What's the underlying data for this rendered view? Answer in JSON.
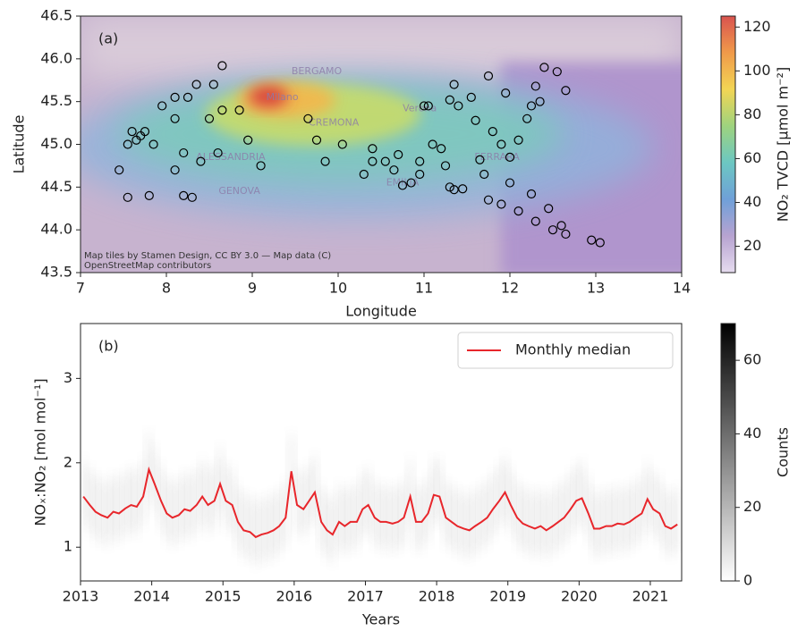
{
  "chart_data": [
    {
      "type": "scatter",
      "panel_label": "(a)",
      "x_label": "Longitude",
      "y_label": "Latitude",
      "xlim": [
        7,
        14
      ],
      "xticks": [
        7,
        8,
        9,
        10,
        11,
        12,
        13,
        14
      ],
      "ylim": [
        43.5,
        46.5
      ],
      "yticks": [
        43.5,
        {
          "value": 44,
          "label": "44.0"
        },
        44.5,
        {
          "value": 45,
          "label": "45.0"
        },
        45.5,
        {
          "value": 46,
          "label": "46.0"
        },
        46.5
      ],
      "x": [
        7.45,
        7.55,
        7.55,
        7.6,
        7.65,
        7.7,
        7.75,
        7.85,
        7.8,
        7.95,
        8.1,
        8.1,
        8.1,
        8.25,
        8.35,
        8.2,
        8.2,
        8.3,
        8.4,
        8.5,
        8.55,
        8.65,
        8.6,
        8.65,
        8.85,
        8.95,
        9.1,
        9.65,
        9.75,
        9.85,
        10.05,
        10.3,
        10.4,
        10.4,
        10.55,
        10.65,
        10.7,
        10.75,
        10.85,
        10.95,
        10.95,
        11.0,
        11.05,
        11.1,
        11.2,
        11.25,
        11.3,
        11.35,
        11.45,
        11.3,
        11.35,
        11.4,
        11.55,
        11.6,
        11.65,
        11.7,
        11.75,
        11.8,
        11.75,
        11.9,
        11.9,
        11.95,
        12.0,
        12.0,
        12.1,
        12.1,
        12.2,
        12.25,
        12.25,
        12.3,
        12.35,
        12.4,
        12.3,
        12.45,
        12.5,
        12.55,
        12.6,
        12.65,
        12.65,
        12.95,
        13.05
      ],
      "y": [
        44.7,
        44.38,
        45.0,
        45.15,
        45.05,
        45.1,
        45.15,
        45.0,
        44.4,
        45.45,
        44.7,
        45.3,
        45.55,
        45.55,
        45.7,
        44.9,
        44.4,
        44.38,
        44.8,
        45.3,
        45.7,
        45.92,
        44.9,
        45.4,
        45.4,
        45.05,
        44.75,
        45.3,
        45.05,
        44.8,
        45.0,
        44.65,
        44.95,
        44.8,
        44.8,
        44.7,
        44.88,
        44.52,
        44.55,
        44.65,
        44.8,
        45.45,
        45.45,
        45.0,
        44.95,
        44.75,
        44.5,
        44.47,
        44.48,
        45.52,
        45.7,
        45.45,
        45.55,
        45.28,
        44.82,
        44.65,
        44.35,
        45.15,
        45.8,
        44.3,
        45.0,
        45.6,
        44.85,
        44.55,
        45.05,
        44.22,
        45.3,
        44.42,
        45.45,
        45.68,
        45.5,
        45.9,
        44.1,
        44.25,
        44.0,
        45.85,
        44.05,
        45.63,
        43.95,
        43.88,
        43.85
      ],
      "marker_color": "#000000",
      "map_labels": [
        {
          "text": "Milano",
          "lon": 9.35,
          "lat": 45.55
        },
        {
          "text": "BERGAMO",
          "lon": 9.75,
          "lat": 45.85
        },
        {
          "text": "CREMONA",
          "lon": 9.95,
          "lat": 45.25
        },
        {
          "text": "Verona",
          "lon": 10.95,
          "lat": 45.42
        },
        {
          "text": "ALESSANDRIA",
          "lon": 8.75,
          "lat": 44.85
        },
        {
          "text": "GENOVA",
          "lon": 8.85,
          "lat": 44.45
        },
        {
          "text": "EMILIA",
          "lon": 10.75,
          "lat": 44.55
        },
        {
          "text": "FERRARA",
          "lon": 11.85,
          "lat": 44.85
        }
      ],
      "annotations": [
        "Map tiles by Stamen Design, CC BY 3.0 — Map data (C)",
        "OpenStreetMap contributors"
      ],
      "colorbar": {
        "label": "NO₂ TVCD [μmol m⁻²]",
        "lim": [
          8,
          125
        ],
        "ticks": [
          20,
          40,
          60,
          80,
          100,
          120
        ],
        "colors": [
          "#e6dcef",
          "#b7a3d1",
          "#6fa0d8",
          "#6cc7c2",
          "#9ed37e",
          "#f2d554",
          "#f09a4a",
          "#d9534f"
        ]
      }
    },
    {
      "type": "line",
      "panel_label": "(b)",
      "x_label": "Years",
      "y_label": "NOₓ:NO₂ [mol mol⁻¹]",
      "xlim": [
        2013,
        2021.44
      ],
      "xticks": [
        2013,
        2014,
        2015,
        2016,
        2017,
        2018,
        2019,
        2020,
        2021
      ],
      "ylim": [
        0.6,
        3.65
      ],
      "yticks": [
        1,
        2,
        3
      ],
      "x": [
        2013.04,
        2013.13,
        2013.21,
        2013.29,
        2013.38,
        2013.46,
        2013.54,
        2013.63,
        2013.71,
        2013.79,
        2013.88,
        2013.96,
        2014.04,
        2014.13,
        2014.21,
        2014.29,
        2014.38,
        2014.46,
        2014.54,
        2014.63,
        2014.71,
        2014.79,
        2014.88,
        2014.96,
        2015.04,
        2015.13,
        2015.21,
        2015.29,
        2015.38,
        2015.46,
        2015.54,
        2015.63,
        2015.71,
        2015.79,
        2015.88,
        2015.96,
        2016.04,
        2016.13,
        2016.21,
        2016.29,
        2016.38,
        2016.46,
        2016.54,
        2016.63,
        2016.71,
        2016.79,
        2016.88,
        2016.96,
        2017.04,
        2017.13,
        2017.21,
        2017.29,
        2017.38,
        2017.46,
        2017.54,
        2017.63,
        2017.71,
        2017.79,
        2017.88,
        2017.96,
        2018.04,
        2018.13,
        2018.21,
        2018.29,
        2018.38,
        2018.46,
        2018.54,
        2018.63,
        2018.71,
        2018.79,
        2018.88,
        2018.96,
        2019.04,
        2019.13,
        2019.21,
        2019.29,
        2019.38,
        2019.46,
        2019.54,
        2019.63,
        2019.71,
        2019.79,
        2019.88,
        2019.96,
        2020.04,
        2020.13,
        2020.21,
        2020.29,
        2020.38,
        2020.46,
        2020.54,
        2020.63,
        2020.71,
        2020.79,
        2020.88,
        2020.96,
        2021.04,
        2021.13,
        2021.21,
        2021.29,
        2021.38
      ],
      "series": [
        {
          "name": "Monthly median",
          "color": "#e8262b",
          "values": [
            1.6,
            1.5,
            1.42,
            1.38,
            1.35,
            1.42,
            1.4,
            1.46,
            1.5,
            1.48,
            1.6,
            1.92,
            1.75,
            1.55,
            1.4,
            1.35,
            1.38,
            1.45,
            1.43,
            1.5,
            1.6,
            1.5,
            1.55,
            1.75,
            1.55,
            1.5,
            1.3,
            1.2,
            1.18,
            1.12,
            1.15,
            1.17,
            1.2,
            1.25,
            1.35,
            1.9,
            1.5,
            1.45,
            1.55,
            1.65,
            1.3,
            1.2,
            1.15,
            1.3,
            1.25,
            1.3,
            1.3,
            1.45,
            1.5,
            1.35,
            1.3,
            1.3,
            1.28,
            1.3,
            1.35,
            1.6,
            1.3,
            1.3,
            1.4,
            1.62,
            1.6,
            1.35,
            1.3,
            1.25,
            1.22,
            1.2,
            1.25,
            1.3,
            1.35,
            1.45,
            1.55,
            1.65,
            1.5,
            1.35,
            1.28,
            1.25,
            1.22,
            1.25,
            1.2,
            1.25,
            1.3,
            1.35,
            1.45,
            1.55,
            1.58,
            1.4,
            1.22,
            1.22,
            1.25,
            1.25,
            1.28,
            1.27,
            1.3,
            1.35,
            1.4,
            1.57,
            1.45,
            1.4,
            1.25,
            1.22,
            1.27
          ]
        }
      ],
      "legend": "upper right",
      "colorbar": {
        "label": "Counts",
        "lim": [
          0,
          70
        ],
        "ticks": [
          0,
          20,
          40,
          60
        ],
        "colors": [
          "#ffffff",
          "#000000"
        ]
      }
    }
  ]
}
